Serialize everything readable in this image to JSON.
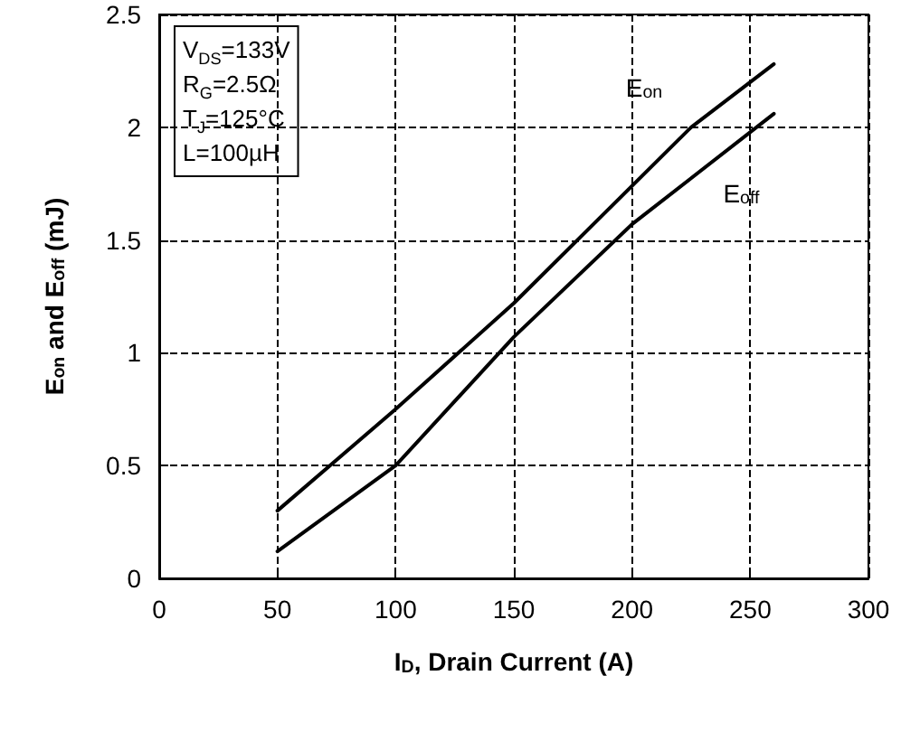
{
  "chart_data": {
    "type": "line",
    "xlabel": "I$_{D}$, Drain Current (A)",
    "ylabel": "E$_{on}$ and E$_{off}$ (mJ)",
    "series": [
      {
        "name": "E$_{on}$",
        "color": "#000000",
        "x": [
          50,
          100,
          150,
          225,
          260
        ],
        "values": [
          0.3,
          0.75,
          1.22,
          2.0,
          2.28
        ]
      },
      {
        "name": "E$_{off}$",
        "color": "#000000",
        "x": [
          50,
          100,
          150,
          200,
          260
        ],
        "values": [
          0.12,
          0.5,
          1.07,
          1.57,
          2.06
        ]
      }
    ],
    "xlim": [
      0,
      300
    ],
    "xticks": [
      0,
      50,
      100,
      150,
      200,
      250,
      300
    ],
    "ylim": [
      0,
      2.5
    ],
    "yticks": [
      0,
      0.5,
      1,
      1.5,
      2,
      2.5
    ],
    "grid": true,
    "marker": "none",
    "line_style": "solid",
    "annotations": [
      "V$_{DS}$=133V",
      "R$_{G}$=2.5Ω",
      "T$_{J}$=125°C",
      "L=100µH"
    ]
  }
}
